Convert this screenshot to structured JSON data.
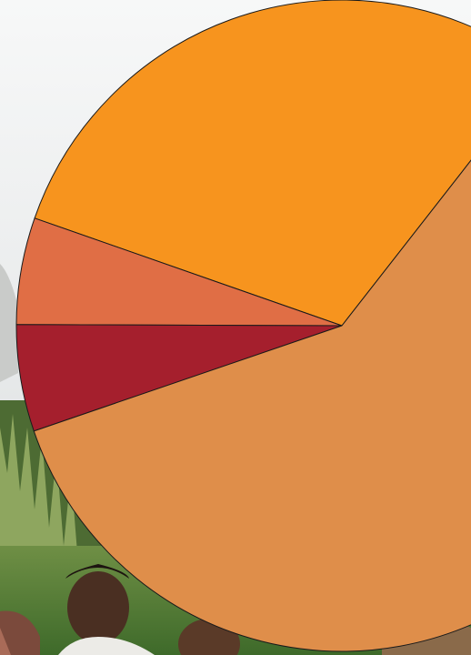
{
  "background": {
    "description_colors": {
      "sky_top": "#f4f5f5",
      "sky_mid": "#e3e5e6",
      "foliage_dark": "#3f5a2a",
      "foliage_light": "#8fae5a",
      "grass": "#5d8a3a",
      "skin": "#5a3a28",
      "shirt": "#e9e9e6"
    }
  },
  "chart_data": {
    "type": "pie",
    "title": "",
    "start_angle_deg": -52,
    "direction": "counterclockwise",
    "slices": [
      {
        "value": 30.2,
        "color": "#f7941e"
      },
      {
        "value": 5.3,
        "color": "#e06e45"
      },
      {
        "value": 5.3,
        "color": "#a51f2d"
      },
      {
        "value": 59.2,
        "color": "#df8e4a"
      }
    ],
    "stroke_color": "#1a1a1a"
  }
}
